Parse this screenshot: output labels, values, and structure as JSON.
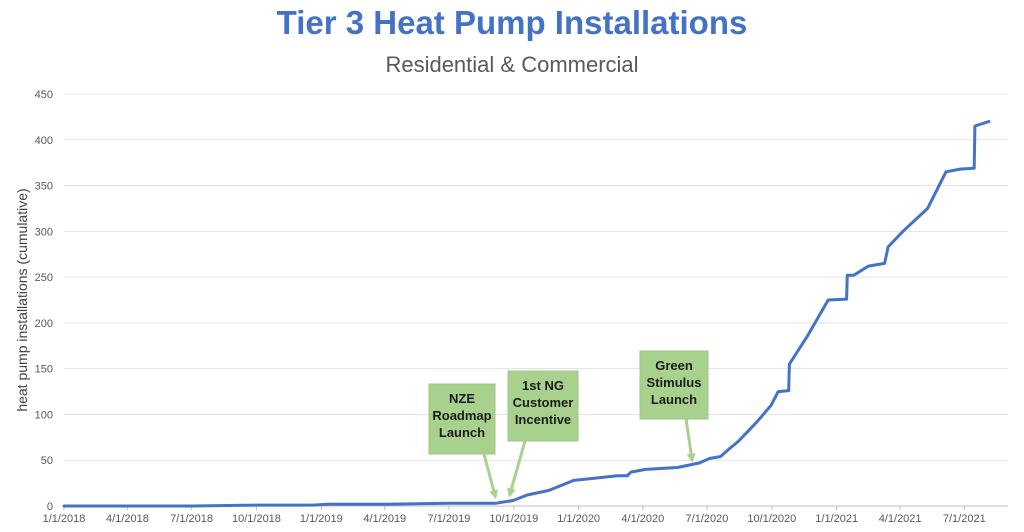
{
  "chart_data": {
    "type": "line",
    "title": "Tier 3 Heat Pump Installations",
    "subtitle": "Residential & Commercial",
    "ylabel": "heat pump installations (cumulative)",
    "xlabel": "",
    "ylim": [
      0,
      450
    ],
    "yticks": [
      0,
      50,
      100,
      150,
      200,
      250,
      300,
      350,
      400,
      450
    ],
    "xticks": [
      "1/1/2018",
      "4/1/2018",
      "7/1/2018",
      "10/1/2018",
      "1/1/2019",
      "4/1/2019",
      "7/1/2019",
      "10/1/2019",
      "1/1/2020",
      "4/1/2020",
      "7/1/2020",
      "10/1/2020",
      "1/1/2021",
      "4/1/2021",
      "7/1/2021"
    ],
    "xlim": [
      "2018-01-01",
      "2021-09-01"
    ],
    "grid": "horizontal",
    "line_color": "#4472c4",
    "series": [
      {
        "x": [
          "2018-01-01",
          "2018-04-01",
          "2018-07-01",
          "2018-10-01",
          "2018-12-20",
          "2019-01-10",
          "2019-04-01",
          "2019-07-01",
          "2019-09-05",
          "2019-09-30",
          "2019-10-20",
          "2019-11-20",
          "2019-12-25",
          "2020-01-20",
          "2020-02-25",
          "2020-03-10",
          "2020-03-15",
          "2020-04-05",
          "2020-05-20",
          "2020-06-20",
          "2020-07-05",
          "2020-07-20",
          "2020-08-01",
          "2020-08-15",
          "2020-09-10",
          "2020-09-30",
          "2020-10-10",
          "2020-10-25",
          "2020-10-26",
          "2020-11-20",
          "2020-12-20",
          "2021-01-15",
          "2021-01-16",
          "2021-01-25",
          "2021-02-15",
          "2021-03-10",
          "2021-03-15",
          "2021-04-05",
          "2021-05-10",
          "2021-06-05",
          "2021-06-25",
          "2021-07-15",
          "2021-07-16",
          "2021-08-05"
        ],
        "y": [
          0,
          0,
          0,
          1,
          1,
          2,
          2,
          3,
          3,
          6,
          12,
          17,
          28,
          30,
          33,
          33,
          37,
          40,
          42,
          47,
          52,
          54,
          62,
          71,
          92,
          110,
          125,
          126,
          155,
          185,
          225,
          226,
          252,
          252,
          262,
          265,
          283,
          300,
          325,
          365,
          368,
          369,
          415,
          420
        ]
      }
    ],
    "annotations": [
      {
        "lines": [
          "NZE",
          "Roadmap",
          "Launch"
        ],
        "target_x": "2019-09-05",
        "target_y": 3
      },
      {
        "lines": [
          "1st NG",
          "Customer",
          "Incentive"
        ],
        "target_x": "2019-09-25",
        "target_y": 5
      },
      {
        "lines": [
          "Green",
          "Stimulus",
          "Launch"
        ],
        "target_x": "2020-06-10",
        "target_y": 43
      }
    ],
    "annotation_fill": "#a9d18e"
  }
}
